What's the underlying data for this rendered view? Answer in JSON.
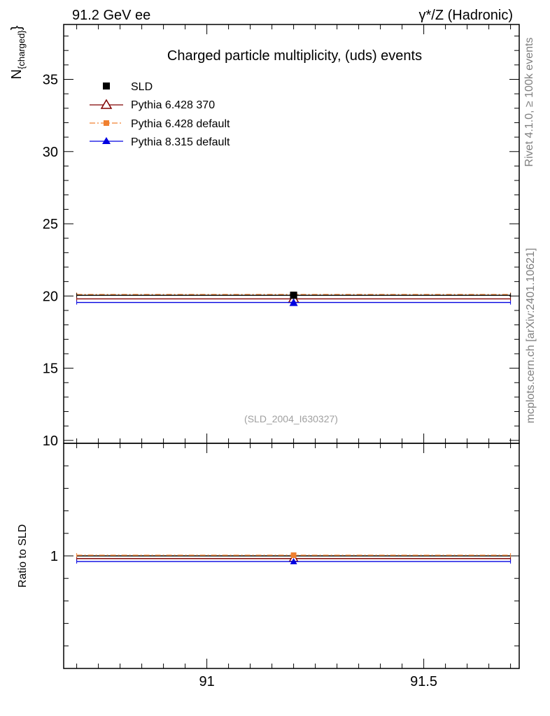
{
  "header": {
    "left": "91.2 GeV ee",
    "right": "γ*/Z (Hadronic)"
  },
  "side_text": {
    "rivet": "Rivet 4.1.0, ≥ 100k events",
    "mcplots": "mcplots.cern.ch [arXiv:2401.10621]"
  },
  "chart_data": [
    {
      "type": "scatter",
      "title": "Charged particle multiplicity, (uds) events",
      "ylabel_main": "N",
      "ylabel_sub": "{charged}",
      "ylabel_close": "}",
      "watermark": "(SLD_2004_I630327)",
      "xlim": [
        90.67,
        91.72
      ],
      "ylim": [
        9.8,
        38.8
      ],
      "yticks": [
        10,
        15,
        20,
        25,
        30,
        35
      ],
      "legend_position": "top-left",
      "series": [
        {
          "name": "SLD",
          "color": "#000000",
          "marker": "square",
          "x": [
            91.2
          ],
          "y": [
            20.05
          ],
          "xerr": [
            [
              90.7,
              91.7
            ]
          ]
        },
        {
          "name": "Pythia 6.428 370",
          "color": "#800000",
          "marker": "triangle-open",
          "x": [
            91.2
          ],
          "y": [
            19.8
          ],
          "xerr": [
            [
              90.7,
              91.7
            ]
          ]
        },
        {
          "name": "Pythia 6.428 default",
          "color": "#f08030",
          "marker": "square-small",
          "dash": true,
          "x": [
            91.2
          ],
          "y": [
            20.1
          ],
          "xerr": [
            [
              90.7,
              91.7
            ]
          ]
        },
        {
          "name": "Pythia 8.315 default",
          "color": "#0000e0",
          "marker": "triangle",
          "x": [
            91.2
          ],
          "y": [
            19.55
          ],
          "xerr": [
            [
              90.7,
              91.7
            ]
          ]
        }
      ]
    },
    {
      "type": "scatter",
      "ylabel": "Ratio to SLD",
      "xlim": [
        90.67,
        91.72
      ],
      "ylim": [
        0.5,
        1.5
      ],
      "xticks": [
        91,
        91.5
      ],
      "xtick_labels": [
        "91",
        "91.5"
      ],
      "yticks": [
        1
      ],
      "ytick_labels": [
        "1"
      ],
      "series": [
        {
          "name": "Pythia 6.428 370",
          "color": "#800000",
          "x": [
            91.2
          ],
          "y": [
            0.988
          ]
        },
        {
          "name": "Pythia 6.428 default",
          "color": "#f08030",
          "x": [
            91.2
          ],
          "y": [
            1.003
          ]
        },
        {
          "name": "Pythia 8.315 default",
          "color": "#0000e0",
          "x": [
            91.2
          ],
          "y": [
            0.975
          ]
        }
      ]
    }
  ]
}
